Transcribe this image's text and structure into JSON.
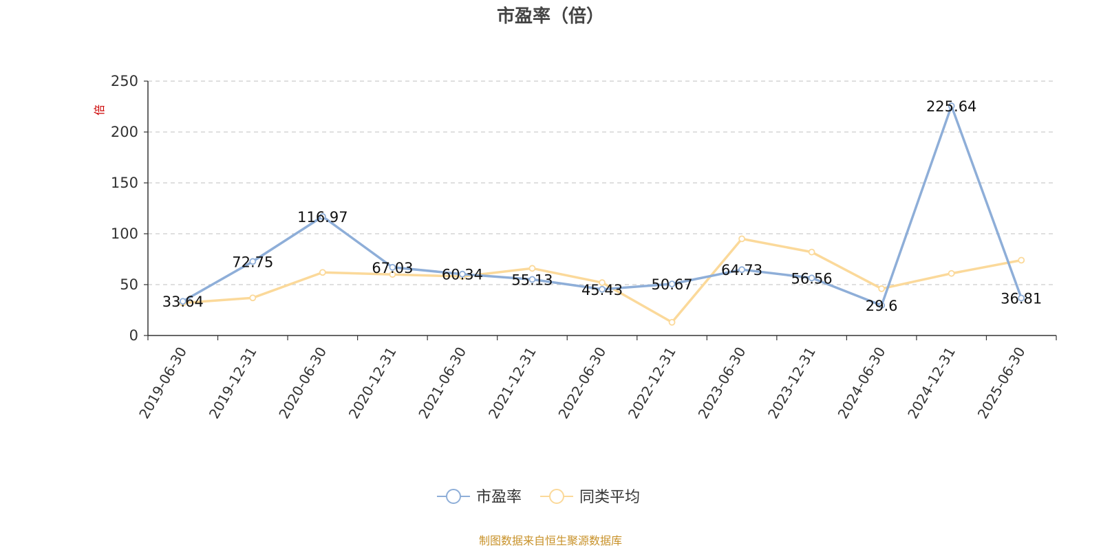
{
  "chart_data": {
    "type": "line",
    "title": "市盈率（倍）",
    "ylabel": "倍",
    "xlabel": "",
    "ylim": [
      0,
      250
    ],
    "yticks": [
      0,
      50,
      100,
      150,
      200,
      250
    ],
    "grid": true,
    "legend_position": "bottom-center",
    "categories": [
      "2019-06-30",
      "2019-12-31",
      "2020-06-30",
      "2020-12-31",
      "2021-06-30",
      "2021-12-31",
      "2022-06-30",
      "2022-12-31",
      "2023-06-30",
      "2023-12-31",
      "2024-06-30",
      "2024-12-31",
      "2025-06-30"
    ],
    "series": [
      {
        "name": "市盈率",
        "color": "#8eaed8",
        "values": [
          33.64,
          72.75,
          116.97,
          67.03,
          60.34,
          55.13,
          45.43,
          50.67,
          64.73,
          56.56,
          29.6,
          225.64,
          36.81
        ],
        "labels": [
          "33.64",
          "72.75",
          "116.97",
          "67.03",
          "60.34",
          "55.13",
          "45.43",
          "50.67",
          "64.73",
          "56.56",
          "29.6",
          "225.64",
          "36.81"
        ]
      },
      {
        "name": "同类平均",
        "color": "#fbd99a",
        "values": [
          32,
          37,
          62,
          60,
          58,
          66,
          52,
          13,
          95,
          82,
          46,
          61,
          74
        ]
      }
    ],
    "source": "制图数据来自恒生聚源数据库"
  }
}
